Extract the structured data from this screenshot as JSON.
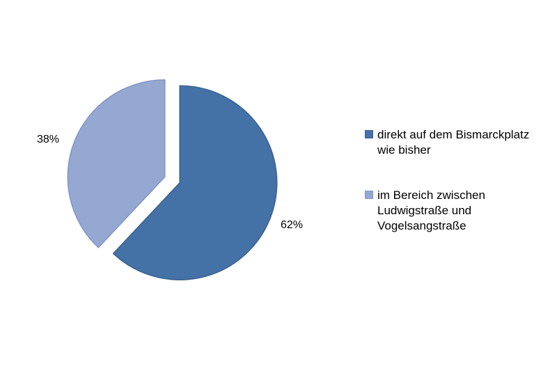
{
  "chart_data": {
    "type": "pie",
    "title": "",
    "exploded": true,
    "direction": "clockwise",
    "start_angle_deg": 0,
    "legend_position": "right",
    "total": 100,
    "slices": [
      {
        "name": "direkt auf dem Bismarckplatz wie bisher",
        "value": 62,
        "label": "62%",
        "color": "#4472A6",
        "border_color": "#3A6190"
      },
      {
        "name": "im Bereich zwischen Ludwigstraße und Vogelsangstraße",
        "value": 38,
        "label": "38%",
        "color": "#95A8D1",
        "border_color": "#8196C7"
      }
    ]
  },
  "legend": {
    "items": [
      {
        "label": "direkt auf dem Bismarckplatz\nwie bisher",
        "swatch_color": "#4472A6",
        "swatch_border": "#3A6190"
      },
      {
        "label": "im Bereich zwischen\nLudwigstraße und\nVogelsangstraße",
        "swatch_color": "#95A8D1",
        "swatch_border": "#8196C7"
      }
    ]
  },
  "colors": {
    "background": "#FFFFFF",
    "text": "#000000"
  }
}
